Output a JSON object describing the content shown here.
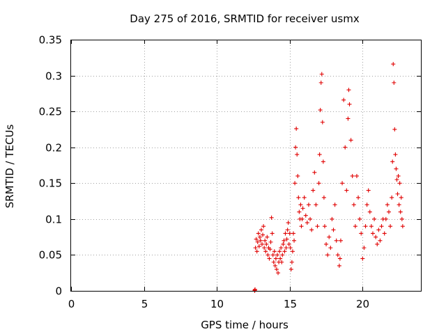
{
  "chart_data": {
    "type": "scatter",
    "title": "Day 275 of 2016, SRMTID for receiver usmx",
    "xlabel": "GPS time / hours",
    "ylabel": "SRMTID / TECUs",
    "xlim": [
      0,
      24
    ],
    "ylim": [
      0,
      0.35
    ],
    "x_ticks": [
      0,
      5,
      10,
      15,
      20
    ],
    "x_tick_labels": [
      "0",
      "5",
      "10",
      "15",
      "20"
    ],
    "y_ticks": [
      0,
      0.05,
      0.1,
      0.15,
      0.2,
      0.25,
      0.3,
      0.35
    ],
    "y_tick_labels": [
      "0",
      "0.05",
      "0.1",
      "0.15",
      "0.2",
      "0.25",
      "0.3",
      "0.35"
    ],
    "grid": true,
    "marker": "+",
    "color": "#e00000",
    "series": [
      {
        "name": "SRMTID",
        "points": [
          [
            12.6,
            0.0
          ],
          [
            12.6,
            0.001
          ],
          [
            12.62,
            0.002
          ],
          [
            12.65,
            0.06
          ],
          [
            12.7,
            0.072
          ],
          [
            12.75,
            0.055
          ],
          [
            12.8,
            0.068
          ],
          [
            12.85,
            0.08
          ],
          [
            12.9,
            0.062
          ],
          [
            12.95,
            0.075
          ],
          [
            13.0,
            0.07
          ],
          [
            13.05,
            0.085
          ],
          [
            13.1,
            0.065
          ],
          [
            13.15,
            0.078
          ],
          [
            13.2,
            0.09
          ],
          [
            13.25,
            0.06
          ],
          [
            13.3,
            0.07
          ],
          [
            13.35,
            0.055
          ],
          [
            13.4,
            0.065
          ],
          [
            13.45,
            0.075
          ],
          [
            13.5,
            0.05
          ],
          [
            13.55,
            0.06
          ],
          [
            13.6,
            0.045
          ],
          [
            13.65,
            0.058
          ],
          [
            13.7,
            0.068
          ],
          [
            13.75,
            0.102
          ],
          [
            13.8,
            0.08
          ],
          [
            13.85,
            0.05
          ],
          [
            13.9,
            0.04
          ],
          [
            13.95,
            0.055
          ],
          [
            14.0,
            0.035
          ],
          [
            14.05,
            0.045
          ],
          [
            14.1,
            0.03
          ],
          [
            14.15,
            0.05
          ],
          [
            14.2,
            0.025
          ],
          [
            14.25,
            0.04
          ],
          [
            14.3,
            0.055
          ],
          [
            14.35,
            0.045
          ],
          [
            14.4,
            0.06
          ],
          [
            14.45,
            0.04
          ],
          [
            14.5,
            0.05
          ],
          [
            14.55,
            0.065
          ],
          [
            14.6,
            0.07
          ],
          [
            14.65,
            0.055
          ],
          [
            14.7,
            0.08
          ],
          [
            14.75,
            0.06
          ],
          [
            14.8,
            0.072
          ],
          [
            14.85,
            0.085
          ],
          [
            14.9,
            0.095
          ],
          [
            14.95,
            0.065
          ],
          [
            15.0,
            0.08
          ],
          [
            15.05,
            0.06
          ],
          [
            15.1,
            0.03
          ],
          [
            15.15,
            0.04
          ],
          [
            15.2,
            0.055
          ],
          [
            15.25,
            0.08
          ],
          [
            15.3,
            0.07
          ],
          [
            15.35,
            0.15
          ],
          [
            15.4,
            0.2
          ],
          [
            15.45,
            0.226
          ],
          [
            15.5,
            0.19
          ],
          [
            15.55,
            0.16
          ],
          [
            15.6,
            0.13
          ],
          [
            15.65,
            0.11
          ],
          [
            15.7,
            0.1
          ],
          [
            15.75,
            0.12
          ],
          [
            15.8,
            0.09
          ],
          [
            15.85,
            0.1
          ],
          [
            15.9,
            0.115
          ],
          [
            16.0,
            0.13
          ],
          [
            16.1,
            0.105
          ],
          [
            16.2,
            0.095
          ],
          [
            16.3,
            0.12
          ],
          [
            16.4,
            0.1
          ],
          [
            16.5,
            0.085
          ],
          [
            16.6,
            0.14
          ],
          [
            16.7,
            0.165
          ],
          [
            16.8,
            0.12
          ],
          [
            16.9,
            0.09
          ],
          [
            17.0,
            0.15
          ],
          [
            17.05,
            0.19
          ],
          [
            17.1,
            0.252
          ],
          [
            17.15,
            0.29
          ],
          [
            17.2,
            0.302
          ],
          [
            17.25,
            0.235
          ],
          [
            17.3,
            0.18
          ],
          [
            17.35,
            0.13
          ],
          [
            17.4,
            0.09
          ],
          [
            17.5,
            0.065
          ],
          [
            17.6,
            0.05
          ],
          [
            17.7,
            0.075
          ],
          [
            17.8,
            0.06
          ],
          [
            17.9,
            0.1
          ],
          [
            18.0,
            0.085
          ],
          [
            18.1,
            0.12
          ],
          [
            18.2,
            0.07
          ],
          [
            18.3,
            0.05
          ],
          [
            18.4,
            0.035
          ],
          [
            18.45,
            0.045
          ],
          [
            18.5,
            0.07
          ],
          [
            18.6,
            0.15
          ],
          [
            18.7,
            0.266
          ],
          [
            18.8,
            0.2
          ],
          [
            18.9,
            0.14
          ],
          [
            19.0,
            0.24
          ],
          [
            19.05,
            0.28
          ],
          [
            19.1,
            0.26
          ],
          [
            19.2,
            0.21
          ],
          [
            19.3,
            0.16
          ],
          [
            19.4,
            0.12
          ],
          [
            19.5,
            0.09
          ],
          [
            19.6,
            0.16
          ],
          [
            19.7,
            0.13
          ],
          [
            19.8,
            0.1
          ],
          [
            19.9,
            0.08
          ],
          [
            20.0,
            0.045
          ],
          [
            20.1,
            0.06
          ],
          [
            20.2,
            0.09
          ],
          [
            20.3,
            0.12
          ],
          [
            20.4,
            0.14
          ],
          [
            20.5,
            0.11
          ],
          [
            20.6,
            0.09
          ],
          [
            20.7,
            0.08
          ],
          [
            20.8,
            0.1
          ],
          [
            20.9,
            0.075
          ],
          [
            21.0,
            0.065
          ],
          [
            21.1,
            0.085
          ],
          [
            21.2,
            0.07
          ],
          [
            21.3,
            0.09
          ],
          [
            21.4,
            0.1
          ],
          [
            21.5,
            0.08
          ],
          [
            21.6,
            0.1
          ],
          [
            21.7,
            0.12
          ],
          [
            21.8,
            0.11
          ],
          [
            21.9,
            0.09
          ],
          [
            22.0,
            0.13
          ],
          [
            22.05,
            0.18
          ],
          [
            22.1,
            0.316
          ],
          [
            22.15,
            0.29
          ],
          [
            22.2,
            0.225
          ],
          [
            22.25,
            0.19
          ],
          [
            22.3,
            0.17
          ],
          [
            22.35,
            0.155
          ],
          [
            22.4,
            0.135
          ],
          [
            22.45,
            0.16
          ],
          [
            22.5,
            0.12
          ],
          [
            22.55,
            0.15
          ],
          [
            22.6,
            0.11
          ],
          [
            22.65,
            0.13
          ],
          [
            22.7,
            0.1
          ],
          [
            22.75,
            0.09
          ]
        ]
      }
    ]
  }
}
